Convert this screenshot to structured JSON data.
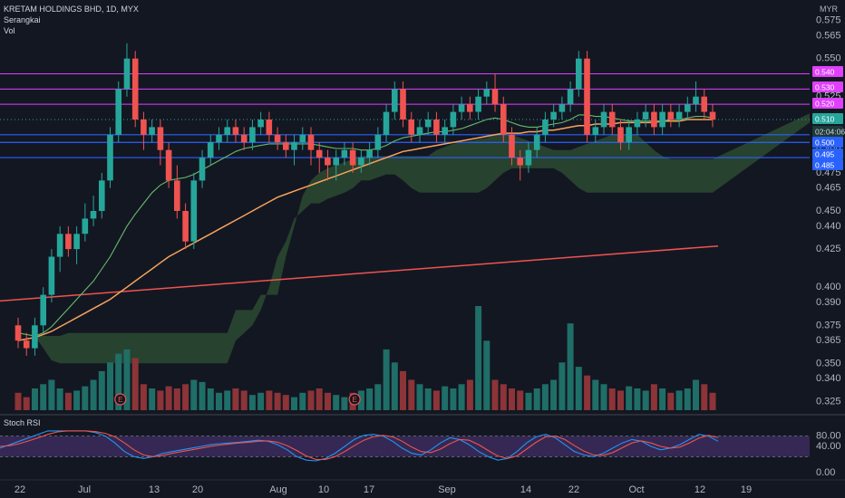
{
  "header": {
    "symbol_line": "KRETAM HOLDINGS BHD, 1D, MYX",
    "indicator_1": "Serangkai",
    "indicator_2": "Vol",
    "currency": "MYR",
    "stoch_label": "Stoch RSI"
  },
  "colors": {
    "background": "#131722",
    "up": "#26a69a",
    "down": "#ef5350",
    "vol_up": "#1f6e67",
    "vol_down": "#8c3437",
    "ma_fast": "#66bb6a",
    "ma_slow": "#f7a35c",
    "ma_long": "#ef5350",
    "cloud": "#2f5233",
    "magenta": "#e040fb",
    "blue": "#2962ff",
    "stoch_k": "#2196f3",
    "stoch_d": "#ef5350",
    "stoch_band": "#3a2a5a"
  },
  "chart_data": {
    "type": "candlestick",
    "price_axis": {
      "ticks": [
        "0.575",
        "0.565",
        "0.550",
        "0.540",
        "0.525",
        "0.510",
        "0.500",
        "0.490",
        "0.475",
        "0.465",
        "0.450",
        "0.440",
        "0.425",
        "0.400",
        "0.390",
        "0.375",
        "0.365",
        "0.350",
        "0.340",
        "0.325"
      ]
    },
    "x_axis": {
      "ticks": [
        "22",
        "Jul",
        "13",
        "20",
        "Aug",
        "10",
        "17",
        "Sep",
        "14",
        "22",
        "Oct",
        "12",
        "19"
      ]
    },
    "price_tags": [
      {
        "label": "0.540",
        "kind": "magenta"
      },
      {
        "label": "0.530",
        "kind": "magenta"
      },
      {
        "label": "0.520",
        "kind": "magenta"
      },
      {
        "label": "0.510",
        "kind": "last"
      },
      {
        "label": "02:04:06",
        "kind": "timer"
      },
      {
        "label": "0.500",
        "kind": "blue"
      },
      {
        "label": "0.495",
        "kind": "blue"
      },
      {
        "label": "0.485",
        "kind": "blue"
      }
    ],
    "horizontal_lines": {
      "magenta": [
        0.54,
        0.53,
        0.52
      ],
      "blue": [
        0.5,
        0.495,
        0.485
      ]
    },
    "candles": [
      [
        0.375,
        0.365,
        0.38,
        0.36
      ],
      [
        0.365,
        0.36,
        0.37,
        0.355
      ],
      [
        0.36,
        0.375,
        0.38,
        0.355
      ],
      [
        0.375,
        0.395,
        0.4,
        0.37
      ],
      [
        0.395,
        0.42,
        0.425,
        0.39
      ],
      [
        0.42,
        0.435,
        0.44,
        0.41
      ],
      [
        0.435,
        0.425,
        0.44,
        0.42
      ],
      [
        0.425,
        0.435,
        0.44,
        0.415
      ],
      [
        0.435,
        0.445,
        0.455,
        0.43
      ],
      [
        0.445,
        0.45,
        0.46,
        0.44
      ],
      [
        0.45,
        0.47,
        0.475,
        0.445
      ],
      [
        0.47,
        0.5,
        0.505,
        0.465
      ],
      [
        0.5,
        0.53,
        0.535,
        0.495
      ],
      [
        0.53,
        0.55,
        0.56,
        0.525
      ],
      [
        0.55,
        0.51,
        0.555,
        0.505
      ],
      [
        0.51,
        0.5,
        0.515,
        0.49
      ],
      [
        0.5,
        0.505,
        0.51,
        0.495
      ],
      [
        0.505,
        0.49,
        0.51,
        0.48
      ],
      [
        0.49,
        0.47,
        0.495,
        0.465
      ],
      [
        0.47,
        0.45,
        0.48,
        0.445
      ],
      [
        0.45,
        0.43,
        0.455,
        0.425
      ],
      [
        0.43,
        0.47,
        0.475,
        0.425
      ],
      [
        0.47,
        0.485,
        0.49,
        0.465
      ],
      [
        0.485,
        0.495,
        0.5,
        0.48
      ],
      [
        0.495,
        0.5,
        0.505,
        0.49
      ],
      [
        0.5,
        0.505,
        0.51,
        0.495
      ],
      [
        0.505,
        0.5,
        0.51,
        0.495
      ],
      [
        0.5,
        0.495,
        0.505,
        0.49
      ],
      [
        0.495,
        0.505,
        0.51,
        0.49
      ],
      [
        0.505,
        0.51,
        0.515,
        0.5
      ],
      [
        0.51,
        0.5,
        0.515,
        0.495
      ],
      [
        0.5,
        0.495,
        0.505,
        0.49
      ],
      [
        0.495,
        0.49,
        0.5,
        0.485
      ],
      [
        0.49,
        0.495,
        0.5,
        0.48
      ],
      [
        0.495,
        0.5,
        0.505,
        0.49
      ],
      [
        0.5,
        0.49,
        0.505,
        0.48
      ],
      [
        0.49,
        0.485,
        0.495,
        0.475
      ],
      [
        0.485,
        0.48,
        0.49,
        0.47
      ],
      [
        0.48,
        0.485,
        0.49,
        0.47
      ],
      [
        0.485,
        0.49,
        0.495,
        0.48
      ],
      [
        0.49,
        0.48,
        0.495,
        0.475
      ],
      [
        0.48,
        0.485,
        0.49,
        0.475
      ],
      [
        0.485,
        0.49,
        0.495,
        0.48
      ],
      [
        0.49,
        0.5,
        0.505,
        0.485
      ],
      [
        0.5,
        0.515,
        0.52,
        0.495
      ],
      [
        0.515,
        0.53,
        0.535,
        0.51
      ],
      [
        0.53,
        0.51,
        0.535,
        0.505
      ],
      [
        0.51,
        0.5,
        0.515,
        0.495
      ],
      [
        0.5,
        0.505,
        0.51,
        0.495
      ],
      [
        0.505,
        0.51,
        0.515,
        0.5
      ],
      [
        0.51,
        0.5,
        0.515,
        0.495
      ],
      [
        0.5,
        0.505,
        0.51,
        0.495
      ],
      [
        0.505,
        0.515,
        0.52,
        0.5
      ],
      [
        0.515,
        0.52,
        0.525,
        0.51
      ],
      [
        0.52,
        0.515,
        0.525,
        0.51
      ],
      [
        0.515,
        0.525,
        0.53,
        0.51
      ],
      [
        0.525,
        0.53,
        0.535,
        0.52
      ],
      [
        0.53,
        0.52,
        0.54,
        0.515
      ],
      [
        0.52,
        0.5,
        0.525,
        0.495
      ],
      [
        0.5,
        0.485,
        0.505,
        0.48
      ],
      [
        0.485,
        0.48,
        0.49,
        0.47
      ],
      [
        0.48,
        0.49,
        0.495,
        0.475
      ],
      [
        0.49,
        0.5,
        0.505,
        0.485
      ],
      [
        0.5,
        0.51,
        0.515,
        0.495
      ],
      [
        0.51,
        0.515,
        0.52,
        0.505
      ],
      [
        0.515,
        0.52,
        0.525,
        0.51
      ],
      [
        0.52,
        0.53,
        0.535,
        0.515
      ],
      [
        0.53,
        0.55,
        0.555,
        0.525
      ],
      [
        0.55,
        0.5,
        0.555,
        0.495
      ],
      [
        0.5,
        0.505,
        0.51,
        0.495
      ],
      [
        0.505,
        0.515,
        0.52,
        0.5
      ],
      [
        0.515,
        0.505,
        0.52,
        0.5
      ],
      [
        0.505,
        0.495,
        0.51,
        0.49
      ],
      [
        0.495,
        0.505,
        0.51,
        0.49
      ],
      [
        0.505,
        0.51,
        0.515,
        0.5
      ],
      [
        0.51,
        0.515,
        0.52,
        0.505
      ],
      [
        0.515,
        0.505,
        0.52,
        0.5
      ],
      [
        0.505,
        0.515,
        0.52,
        0.5
      ],
      [
        0.515,
        0.51,
        0.52,
        0.505
      ],
      [
        0.51,
        0.515,
        0.52,
        0.505
      ],
      [
        0.515,
        0.52,
        0.525,
        0.51
      ],
      [
        0.52,
        0.525,
        0.535,
        0.515
      ],
      [
        0.525,
        0.515,
        0.53,
        0.51
      ],
      [
        0.515,
        0.51,
        0.52,
        0.505
      ]
    ],
    "volume": [
      8,
      6,
      10,
      12,
      14,
      10,
      8,
      9,
      11,
      14,
      18,
      22,
      26,
      28,
      24,
      12,
      10,
      9,
      11,
      10,
      12,
      14,
      13,
      10,
      8,
      9,
      10,
      9,
      7,
      8,
      9,
      8,
      7,
      6,
      8,
      9,
      10,
      8,
      7,
      6,
      8,
      9,
      10,
      12,
      28,
      22,
      18,
      14,
      12,
      10,
      9,
      11,
      10,
      12,
      14,
      48,
      32,
      14,
      12,
      10,
      9,
      8,
      10,
      12,
      14,
      22,
      40,
      20,
      16,
      14,
      12,
      10,
      9,
      11,
      10,
      9,
      12,
      10,
      8,
      9,
      10,
      14,
      12,
      8
    ],
    "ma_fast": [
      0.37,
      0.369,
      0.368,
      0.37,
      0.374,
      0.38,
      0.386,
      0.392,
      0.398,
      0.404,
      0.412,
      0.42,
      0.43,
      0.44,
      0.448,
      0.455,
      0.462,
      0.467,
      0.47,
      0.471,
      0.472,
      0.474,
      0.477,
      0.48,
      0.483,
      0.486,
      0.489,
      0.491,
      0.492,
      0.493,
      0.494,
      0.494,
      0.494,
      0.494,
      0.494,
      0.494,
      0.493,
      0.492,
      0.491,
      0.491,
      0.491,
      0.49,
      0.49,
      0.491,
      0.493,
      0.496,
      0.498,
      0.499,
      0.5,
      0.501,
      0.502,
      0.502,
      0.503,
      0.504,
      0.506,
      0.508,
      0.51,
      0.511,
      0.51,
      0.508,
      0.506,
      0.505,
      0.505,
      0.506,
      0.507,
      0.508,
      0.51,
      0.513,
      0.513,
      0.512,
      0.512,
      0.511,
      0.51,
      0.509,
      0.509,
      0.509,
      0.509,
      0.509,
      0.51,
      0.51,
      0.511,
      0.512,
      0.512,
      0.511
    ],
    "ma_slow": [
      0.365,
      0.366,
      0.367,
      0.369,
      0.371,
      0.374,
      0.377,
      0.38,
      0.383,
      0.386,
      0.389,
      0.392,
      0.396,
      0.4,
      0.404,
      0.408,
      0.412,
      0.416,
      0.42,
      0.423,
      0.426,
      0.429,
      0.432,
      0.435,
      0.438,
      0.441,
      0.444,
      0.447,
      0.45,
      0.453,
      0.456,
      0.459,
      0.461,
      0.463,
      0.465,
      0.467,
      0.469,
      0.471,
      0.473,
      0.475,
      0.477,
      0.479,
      0.481,
      0.483,
      0.485,
      0.487,
      0.489,
      0.49,
      0.491,
      0.492,
      0.493,
      0.494,
      0.495,
      0.496,
      0.497,
      0.498,
      0.499,
      0.5,
      0.501,
      0.501,
      0.501,
      0.502,
      0.502,
      0.503,
      0.503,
      0.504,
      0.505,
      0.506,
      0.506,
      0.507,
      0.507,
      0.507,
      0.508,
      0.508,
      0.508,
      0.508,
      0.508,
      0.509,
      0.509,
      0.509,
      0.51,
      0.51,
      0.51,
      0.51
    ],
    "ma_long": {
      "start": 0.391,
      "end": 0.427
    },
    "cloud": {
      "top": [
        0.368,
        0.368,
        0.368,
        0.368,
        0.368,
        0.368,
        0.37,
        0.37,
        0.37,
        0.37,
        0.37,
        0.37,
        0.37,
        0.37,
        0.37,
        0.37,
        0.37,
        0.37,
        0.37,
        0.37,
        0.37,
        0.37,
        0.37,
        0.37,
        0.37,
        0.37,
        0.385,
        0.385,
        0.385,
        0.395,
        0.395,
        0.395,
        0.42,
        0.44,
        0.46,
        0.47,
        0.475,
        0.478,
        0.48,
        0.482,
        0.484,
        0.486,
        0.486,
        0.486,
        0.486,
        0.486,
        0.486,
        0.486,
        0.486,
        0.486,
        0.49,
        0.492,
        0.494,
        0.495,
        0.496,
        0.497,
        0.498,
        0.5,
        0.5,
        0.5,
        0.498,
        0.496,
        0.494,
        0.492,
        0.49,
        0.49,
        0.49,
        0.492,
        0.494,
        0.496,
        0.498,
        0.5,
        0.5,
        0.5,
        0.5,
        0.495,
        0.49,
        0.486,
        0.484,
        0.484,
        0.484,
        0.484,
        0.484,
        0.484
      ],
      "bottom": [
        0.368,
        0.368,
        0.368,
        0.36,
        0.352,
        0.35,
        0.35,
        0.35,
        0.35,
        0.35,
        0.35,
        0.35,
        0.35,
        0.35,
        0.35,
        0.35,
        0.35,
        0.35,
        0.35,
        0.35,
        0.35,
        0.35,
        0.35,
        0.35,
        0.35,
        0.35,
        0.365,
        0.37,
        0.375,
        0.385,
        0.4,
        0.42,
        0.43,
        0.445,
        0.45,
        0.455,
        0.455,
        0.458,
        0.46,
        0.462,
        0.465,
        0.47,
        0.47,
        0.472,
        0.474,
        0.474,
        0.47,
        0.465,
        0.462,
        0.462,
        0.462,
        0.462,
        0.462,
        0.462,
        0.462,
        0.462,
        0.465,
        0.47,
        0.475,
        0.478,
        0.478,
        0.478,
        0.478,
        0.478,
        0.478,
        0.475,
        0.47,
        0.465,
        0.462,
        0.462,
        0.462,
        0.462,
        0.462,
        0.462,
        0.462,
        0.462,
        0.462,
        0.462,
        0.462,
        0.462,
        0.462,
        0.462,
        0.462,
        0.462
      ]
    },
    "stoch_rsi": {
      "ticks": [
        "80.00",
        "40.00",
        "0.00"
      ],
      "k": [
        45,
        55,
        65,
        75,
        85,
        95,
        95,
        95,
        95,
        95,
        90,
        80,
        60,
        35,
        20,
        15,
        20,
        30,
        35,
        40,
        45,
        50,
        55,
        58,
        60,
        62,
        65,
        68,
        65,
        55,
        40,
        20,
        10,
        8,
        15,
        30,
        50,
        70,
        82,
        85,
        80,
        65,
        45,
        30,
        25,
        40,
        60,
        75,
        70,
        55,
        35,
        20,
        10,
        15,
        35,
        60,
        78,
        85,
        75,
        55,
        35,
        25,
        20,
        30,
        45,
        60,
        70,
        65,
        50,
        40,
        45,
        55,
        70,
        85,
        80,
        65
      ],
      "d": [
        50,
        52,
        58,
        66,
        75,
        85,
        92,
        95,
        95,
        95,
        93,
        88,
        78,
        60,
        40,
        25,
        20,
        24,
        30,
        35,
        40,
        45,
        50,
        54,
        57,
        60,
        62,
        65,
        66,
        62,
        52,
        38,
        22,
        12,
        12,
        20,
        35,
        52,
        68,
        78,
        82,
        78,
        65,
        48,
        35,
        32,
        42,
        58,
        70,
        68,
        55,
        38,
        22,
        15,
        22,
        42,
        62,
        78,
        80,
        70,
        52,
        36,
        25,
        24,
        32,
        46,
        60,
        66,
        60,
        50,
        45,
        48,
        60,
        74,
        82,
        76
      ]
    }
  }
}
